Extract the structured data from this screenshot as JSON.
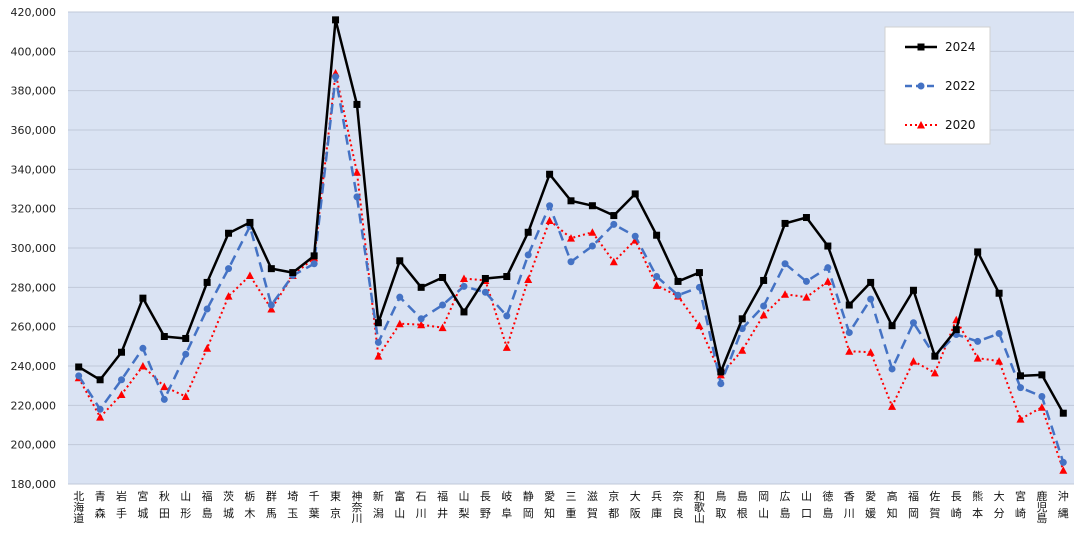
{
  "chart_data": {
    "type": "line",
    "ylim": [
      180000,
      420000
    ],
    "y_ticks": [
      "180,000",
      "200,000",
      "220,000",
      "240,000",
      "260,000",
      "280,000",
      "300,000",
      "320,000",
      "340,000",
      "360,000",
      "380,000",
      "400,000",
      "420,000"
    ],
    "categories": [
      "北海道",
      "青森",
      "岩手",
      "宮城",
      "秋田",
      "山形",
      "福島",
      "茨城",
      "栃木",
      "群馬",
      "埼玉",
      "千葉",
      "東京",
      "神奈川",
      "新潟",
      "富山",
      "石川",
      "福井",
      "山梨",
      "長野",
      "岐阜",
      "静岡",
      "愛知",
      "三重",
      "滋賀",
      "京都",
      "大阪",
      "兵庫",
      "奈良",
      "和歌山",
      "鳥取",
      "島根",
      "岡山",
      "広島",
      "山口",
      "徳島",
      "香川",
      "愛媛",
      "高知",
      "福岡",
      "佐賀",
      "長崎",
      "熊本",
      "大分",
      "宮崎",
      "鹿児島",
      "沖縄"
    ],
    "legend_position": "top-right",
    "grid": true,
    "colors": {
      "plot_bg": "#dae3f3",
      "grid": "#c0c8d8"
    },
    "series": [
      {
        "name": "2024",
        "color": "#000000",
        "style": "solid",
        "marker": "square",
        "values": [
          239500,
          233000,
          247000,
          274500,
          255000,
          254000,
          282500,
          307500,
          313000,
          289500,
          287500,
          296000,
          416000,
          373000,
          262000,
          293500,
          280000,
          285000,
          267500,
          284500,
          285500,
          308000,
          337500,
          324000,
          321500,
          316500,
          327500,
          306500,
          283000,
          287500,
          237000,
          264000,
          283500,
          312500,
          315500,
          301000,
          271000,
          282500,
          260500,
          278500,
          245000,
          258500,
          298000,
          277000,
          235000,
          235500,
          216000
        ]
      },
      {
        "name": "2022",
        "color": "#4472c4",
        "style": "dashed",
        "marker": "circle",
        "values": [
          235000,
          218000,
          233000,
          249000,
          223000,
          246000,
          269000,
          289500,
          311000,
          271000,
          286000,
          292000,
          387000,
          326000,
          252000,
          275000,
          264000,
          271000,
          280500,
          277500,
          265500,
          296500,
          321500,
          293000,
          301000,
          312000,
          306000,
          285500,
          276000,
          280000,
          231000,
          259000,
          270500,
          292000,
          283000,
          290000,
          257000,
          274000,
          238500,
          262000,
          245000,
          256000,
          252500,
          256500,
          229000,
          224500,
          191000
        ]
      },
      {
        "name": "2020",
        "color": "#ff0000",
        "style": "dotted",
        "marker": "triangle",
        "values": [
          234000,
          214000,
          225500,
          240000,
          229500,
          224500,
          249000,
          275500,
          286000,
          269000,
          286000,
          295000,
          389000,
          338500,
          245000,
          261500,
          261000,
          259500,
          284500,
          283500,
          249500,
          284000,
          314000,
          305000,
          308000,
          293000,
          304000,
          281000,
          275500,
          260500,
          235500,
          248000,
          266000,
          276500,
          275000,
          283000,
          247500,
          247000,
          219500,
          242500,
          236500,
          263500,
          244000,
          242500,
          213000,
          219000,
          187000
        ]
      }
    ]
  }
}
